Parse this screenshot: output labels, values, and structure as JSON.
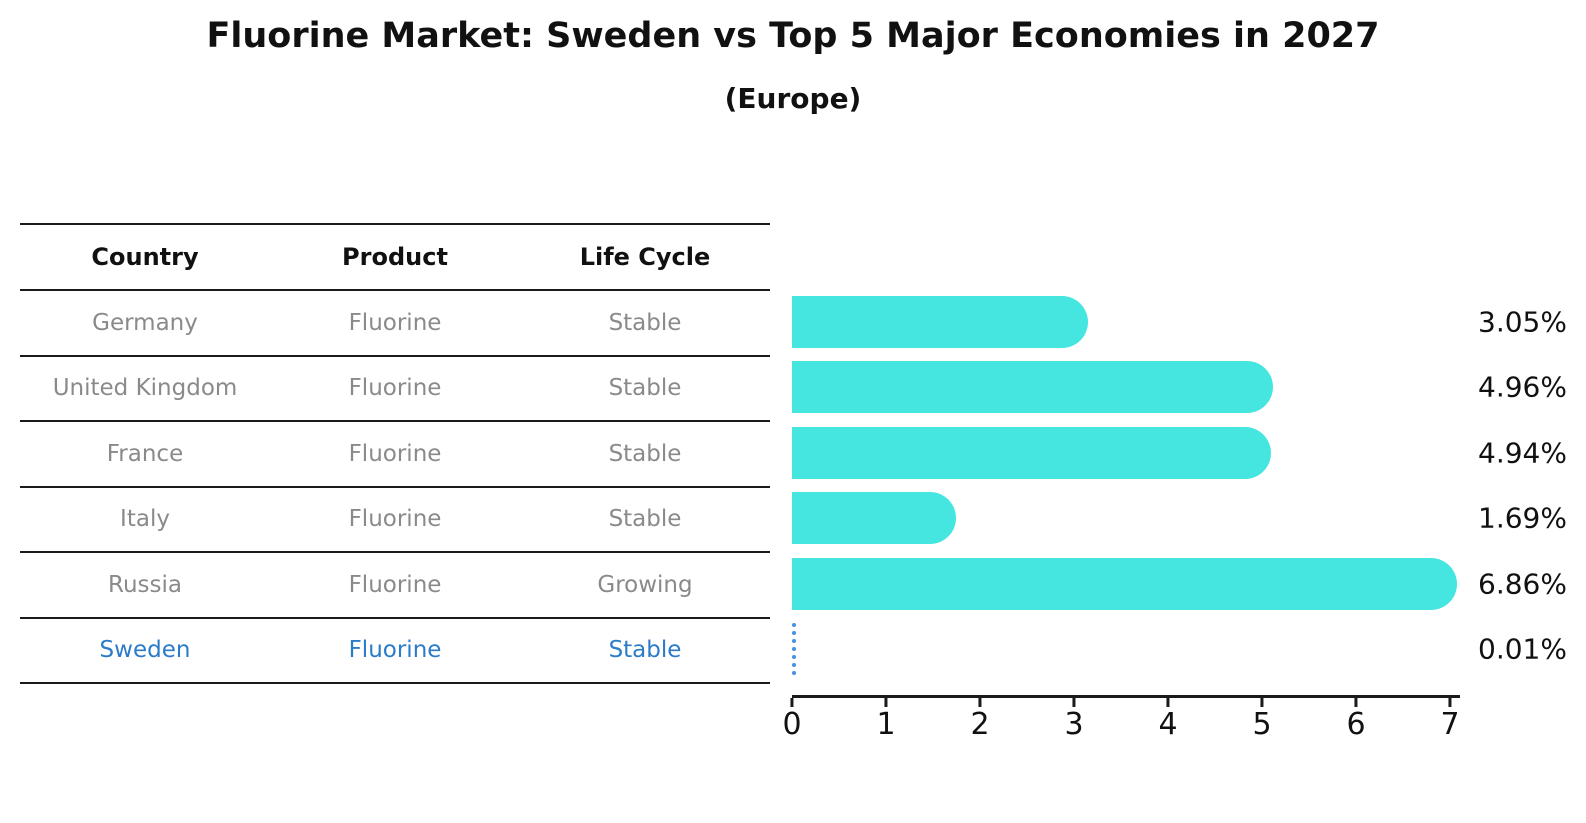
{
  "title": "Fluorine Market: Sweden vs Top 5 Major Economies in 2027",
  "subtitle": "(Europe)",
  "table": {
    "headers": [
      "Country",
      "Product",
      "Life Cycle"
    ],
    "rows": [
      {
        "country": "Germany",
        "product": "Fluorine",
        "life_cycle": "Stable",
        "highlighted": false
      },
      {
        "country": "United Kingdom",
        "product": "Fluorine",
        "life_cycle": "Stable",
        "highlighted": false
      },
      {
        "country": "France",
        "product": "Fluorine",
        "life_cycle": "Stable",
        "highlighted": false
      },
      {
        "country": "Italy",
        "product": "Fluorine",
        "life_cycle": "Stable",
        "highlighted": false
      },
      {
        "country": "Russia",
        "product": "Fluorine",
        "life_cycle": "Growing",
        "highlighted": false
      },
      {
        "country": "Sweden",
        "product": "Fluorine",
        "life_cycle": "Stable",
        "highlighted": true
      }
    ]
  },
  "chart_data": {
    "type": "bar",
    "orientation": "horizontal",
    "title": "Fluorine Market: Sweden vs Top 5 Major Economies in 2027",
    "subtitle": "(Europe)",
    "categories": [
      "Germany",
      "United Kingdom",
      "France",
      "Italy",
      "Russia",
      "Sweden"
    ],
    "values": [
      3.05,
      4.96,
      4.94,
      1.69,
      6.86,
      0.01
    ],
    "value_labels": [
      "3.05%",
      "4.96%",
      "4.94%",
      "1.69%",
      "6.86%",
      "0.01%"
    ],
    "unit": "percent",
    "x_ticks": [
      "0",
      "1",
      "2",
      "3",
      "4",
      "5",
      "6",
      "7"
    ],
    "xlim": [
      0,
      7
    ],
    "grid": false,
    "legend": false,
    "highlight_index": 5
  },
  "colors": {
    "bar": "#45E5E0",
    "highlight_text": "#2B7BC9",
    "highlight_bar_dash": "#4A90E2",
    "table_text": "#8a8a8a",
    "header_text": "#111111",
    "line": "#1a1a1a",
    "background": "#ffffff"
  }
}
